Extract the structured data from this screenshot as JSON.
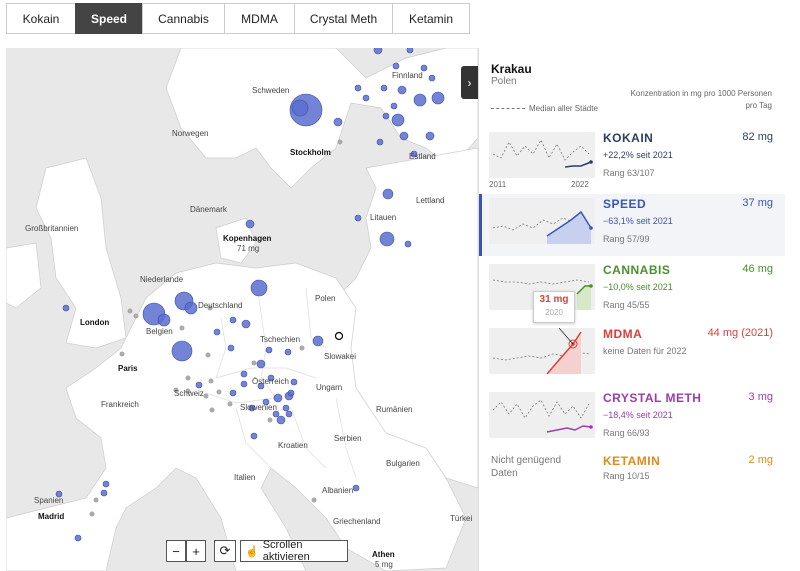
{
  "tabs": [
    {
      "label": "Kokain",
      "active": false
    },
    {
      "label": "Speed",
      "active": true
    },
    {
      "label": "Cannabis",
      "active": false
    },
    {
      "label": "MDMA",
      "active": false
    },
    {
      "label": "Crystal Meth",
      "active": false
    },
    {
      "label": "Ketamin",
      "active": false
    }
  ],
  "map": {
    "labels": {
      "finnland": "Finnland",
      "schweden": "Schweden",
      "norwegen": "Norwegen",
      "stockholm": "Stockholm",
      "estland": "Estland",
      "lettland": "Lettland",
      "litauen": "Litauen",
      "danemark": "Dänemark",
      "grossbritannien": "Großbritannien",
      "kopenhagen": "Kopenhagen",
      "kopenhagen_val": "71 mg",
      "niederlande": "Niederlande",
      "deutschland": "Deutschland",
      "polen": "Polen",
      "london": "London",
      "belgien": "Belgien",
      "tschechien": "Tschechien",
      "slowakei": "Slowakei",
      "paris": "Paris",
      "schweiz": "Schweiz",
      "osterreich": "Österreich",
      "ungarn": "Ungarn",
      "frankreich": "Frankreich",
      "slowenien": "Slowenien",
      "rumanien": "Rumänien",
      "kroatien": "Kroatien",
      "serbien": "Serbien",
      "bulgarien": "Bulgarien",
      "italien": "Italien",
      "albanien": "Albanien",
      "spanien": "Spanien",
      "madrid": "Madrid",
      "griechenland": "Griechenland",
      "turkei": "Türkei",
      "athen": "Athen",
      "athen_val": "5 mg"
    },
    "controls": {
      "minus": "−",
      "plus": "+",
      "reset": "⟳",
      "scroll": "Scrollen aktivieren"
    },
    "toggle": "›",
    "colors": {
      "speed_bubble": "#5b6fd0",
      "no_data": "#aaaaaa",
      "land": "#ffffff",
      "sea": "#e8e8e8"
    }
  },
  "panel": {
    "city": "Krakau",
    "country": "Polen",
    "concentration": "Konzentration in mg pro 1000 Personen pro Tag",
    "median": "Median aller Städte",
    "year_start": "2011",
    "year_end": "2022",
    "tooltip": {
      "value": "31 mg",
      "year": "2020"
    },
    "no_data_note": "Nicht genügend Daten",
    "drugs": [
      {
        "name": "KOKAIN",
        "value": "82 mg",
        "change": "+22,2% seit 2021",
        "rank": "Rang 63/107",
        "color": "#2c3e66"
      },
      {
        "name": "SPEED",
        "value": "37 mg",
        "change": "−63,1% seit 2021",
        "rank": "Rang 57/99",
        "color": "#3b56b0"
      },
      {
        "name": "CANNABIS",
        "value": "46 mg",
        "change": "−10,0% seit 2021",
        "rank": "Rang 45/55",
        "color": "#4a8f2a"
      },
      {
        "name": "MDMA",
        "value": "44 mg (2021)",
        "change": "keine Daten für 2022",
        "rank": "",
        "color": "#d9413b"
      },
      {
        "name": "CRYSTAL METH",
        "value": "3 mg",
        "change": "−18,4% seit 2021",
        "rank": "Rang 66/93",
        "color": "#9b3cae"
      },
      {
        "name": "KETAMIN",
        "value": "2 mg",
        "change": "",
        "rank": "Rang 10/15",
        "color": "#e08a1a"
      }
    ]
  }
}
